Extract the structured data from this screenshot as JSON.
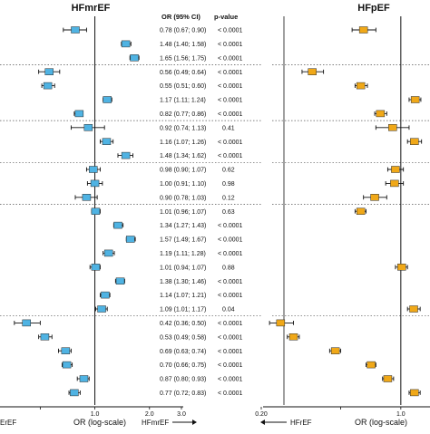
{
  "colors": {
    "hfmref": "#4fb3e3",
    "hfpef": "#f0a818",
    "ink": "#111111",
    "guide": "#555555"
  },
  "chart_data": {
    "type": "forest",
    "scale": "log",
    "xlabel": "OR (log-scale)",
    "headers": {
      "or": "OR (95% CI)",
      "p": "p-value"
    },
    "panels": [
      {
        "title": "HFmrEF",
        "xticks": [
          0.5,
          1.0,
          2.0,
          3.0
        ],
        "xtick_labels": [
          "",
          "1.0",
          "2.0",
          "3.0"
        ],
        "xlim": [
          0.3,
          3.0
        ],
        "left_partial_label": "ErEF",
        "right_direction_label": "HFmrEF",
        "rows": [
          {
            "or": 0.78,
            "lo": 0.67,
            "hi": 0.9,
            "or_text": "0.78 (0.67; 0.90)",
            "p": "< 0.0001"
          },
          {
            "or": 1.48,
            "lo": 1.4,
            "hi": 1.58,
            "or_text": "1.48 (1.40; 1.58)",
            "p": "< 0.0001"
          },
          {
            "or": 1.65,
            "lo": 1.56,
            "hi": 1.75,
            "or_text": "1.65 (1.56; 1.75)",
            "p": "< 0.0001"
          },
          {
            "or": 0.56,
            "lo": 0.49,
            "hi": 0.64,
            "or_text": "0.56 (0.49; 0.64)",
            "p": "< 0.0001"
          },
          {
            "or": 0.55,
            "lo": 0.51,
            "hi": 0.6,
            "or_text": "0.55 (0.51; 0.60)",
            "p": "< 0.0001"
          },
          {
            "or": 1.17,
            "lo": 1.11,
            "hi": 1.24,
            "or_text": "1.17 (1.11; 1.24)",
            "p": "< 0.0001"
          },
          {
            "or": 0.82,
            "lo": 0.77,
            "hi": 0.86,
            "or_text": "0.82 (0.77; 0.86)",
            "p": "< 0.0001"
          },
          {
            "or": 0.92,
            "lo": 0.74,
            "hi": 1.13,
            "or_text": "0.92 (0.74; 1.13)",
            "p": "0.41"
          },
          {
            "or": 1.16,
            "lo": 1.07,
            "hi": 1.26,
            "or_text": "1.16 (1.07; 1.26)",
            "p": "< 0.0001"
          },
          {
            "or": 1.48,
            "lo": 1.34,
            "hi": 1.62,
            "or_text": "1.48 (1.34; 1.62)",
            "p": "< 0.0001"
          },
          {
            "or": 0.98,
            "lo": 0.9,
            "hi": 1.07,
            "or_text": "0.98 (0.90; 1.07)",
            "p": "0.62"
          },
          {
            "or": 1.0,
            "lo": 0.91,
            "hi": 1.1,
            "or_text": "1.00 (0.91; 1.10)",
            "p": "0.98"
          },
          {
            "or": 0.9,
            "lo": 0.78,
            "hi": 1.03,
            "or_text": "0.90 (0.78; 1.03)",
            "p": "0.12"
          },
          {
            "or": 1.01,
            "lo": 0.96,
            "hi": 1.07,
            "or_text": "1.01 (0.96; 1.07)",
            "p": "0.63"
          },
          {
            "or": 1.34,
            "lo": 1.27,
            "hi": 1.43,
            "or_text": "1.34 (1.27; 1.43)",
            "p": "< 0.0001"
          },
          {
            "or": 1.57,
            "lo": 1.49,
            "hi": 1.67,
            "or_text": "1.57 (1.49; 1.67)",
            "p": "< 0.0001"
          },
          {
            "or": 1.19,
            "lo": 1.11,
            "hi": 1.28,
            "or_text": "1.19 (1.11; 1.28)",
            "p": "< 0.0001"
          },
          {
            "or": 1.01,
            "lo": 0.94,
            "hi": 1.07,
            "or_text": "1.01 (0.94; 1.07)",
            "p": "0.88"
          },
          {
            "or": 1.38,
            "lo": 1.3,
            "hi": 1.46,
            "or_text": "1.38 (1.30; 1.46)",
            "p": "< 0.0001"
          },
          {
            "or": 1.14,
            "lo": 1.07,
            "hi": 1.21,
            "or_text": "1.14 (1.07; 1.21)",
            "p": "< 0.0001"
          },
          {
            "or": 1.09,
            "lo": 1.01,
            "hi": 1.17,
            "or_text": "1.09 (1.01; 1.17)",
            "p": "0.04"
          },
          {
            "or": 0.42,
            "lo": 0.36,
            "hi": 0.5,
            "or_text": "0.42 (0.36; 0.50)",
            "p": "< 0.0001"
          },
          {
            "or": 0.53,
            "lo": 0.49,
            "hi": 0.58,
            "or_text": "0.53 (0.49; 0.58)",
            "p": "< 0.0001"
          },
          {
            "or": 0.69,
            "lo": 0.63,
            "hi": 0.74,
            "or_text": "0.69 (0.63; 0.74)",
            "p": "< 0.0001"
          },
          {
            "or": 0.7,
            "lo": 0.66,
            "hi": 0.75,
            "or_text": "0.70 (0.66; 0.75)",
            "p": "< 0.0001"
          },
          {
            "or": 0.87,
            "lo": 0.8,
            "hi": 0.93,
            "or_text": "0.87 (0.80; 0.93)",
            "p": "< 0.0001"
          },
          {
            "or": 0.77,
            "lo": 0.72,
            "hi": 0.83,
            "or_text": "0.77 (0.72; 0.83)",
            "p": "< 0.0001"
          }
        ]
      },
      {
        "title": "HFpEF",
        "xticks": [
          0.2,
          0.5,
          1.0
        ],
        "xtick_labels": [
          "0.20",
          "",
          "1.0"
        ],
        "xlim": [
          0.2,
          1.4
        ],
        "left_direction_label": "HFrEF",
        "rows": [
          {
            "or": 0.65,
            "lo": 0.57,
            "hi": 0.75
          },
          {
            "or": null
          },
          {
            "or": null
          },
          {
            "or": 0.36,
            "lo": 0.32,
            "hi": 0.41
          },
          {
            "or": 0.63,
            "lo": 0.59,
            "hi": 0.68
          },
          {
            "or": 1.18,
            "lo": 1.1,
            "hi": 1.26
          },
          {
            "or": 0.79,
            "lo": 0.74,
            "hi": 0.85
          },
          {
            "or": 0.91,
            "lo": 0.75,
            "hi": 1.1
          },
          {
            "or": 1.17,
            "lo": 1.08,
            "hi": 1.27
          },
          {
            "or": null
          },
          {
            "or": 0.94,
            "lo": 0.86,
            "hi": 1.03
          },
          {
            "or": 0.93,
            "lo": 0.84,
            "hi": 1.03
          },
          {
            "or": 0.74,
            "lo": 0.65,
            "hi": 0.85
          },
          {
            "or": 0.63,
            "lo": 0.59,
            "hi": 0.67
          },
          {
            "or": null
          },
          {
            "or": null
          },
          {
            "or": null
          },
          {
            "or": 1.01,
            "lo": 0.94,
            "hi": 1.08
          },
          {
            "or": null
          },
          {
            "or": null
          },
          {
            "or": 1.16,
            "lo": 1.08,
            "hi": 1.25
          },
          {
            "or": 0.25,
            "lo": 0.22,
            "hi": 0.29
          },
          {
            "or": 0.29,
            "lo": 0.27,
            "hi": 0.31
          },
          {
            "or": 0.47,
            "lo": 0.44,
            "hi": 0.5
          },
          {
            "or": 0.71,
            "lo": 0.67,
            "hi": 0.75
          },
          {
            "or": 0.86,
            "lo": 0.81,
            "hi": 0.92
          },
          {
            "or": 1.17,
            "lo": 1.1,
            "hi": 1.25
          }
        ]
      }
    ],
    "group_separators_after_rows": [
      2,
      6,
      9,
      12,
      20
    ]
  }
}
